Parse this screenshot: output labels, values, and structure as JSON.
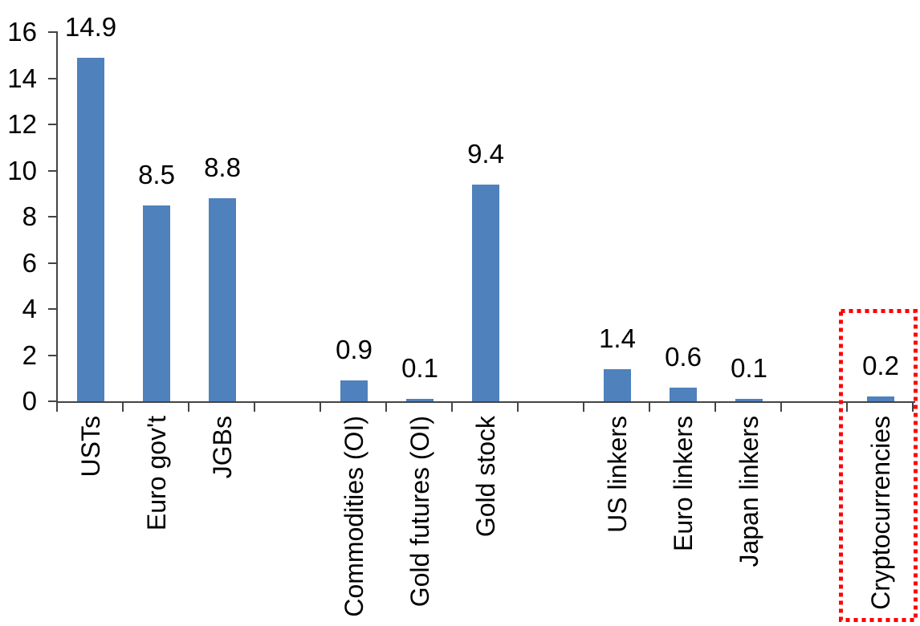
{
  "chart_data": {
    "type": "bar",
    "title": "",
    "xlabel": "",
    "ylabel": "",
    "categories": [
      "USTs",
      "Euro gov't",
      "JGBs",
      "Commodities (OI)",
      "Gold futures (OI)",
      "Gold stock",
      "US linkers",
      "Euro linkers",
      "Japan linkers",
      "Cryptocurrencies"
    ],
    "values": [
      14.9,
      8.5,
      8.8,
      0.9,
      0.1,
      9.4,
      1.4,
      0.6,
      0.1,
      0.2
    ],
    "value_labels": [
      "14.9",
      "8.5",
      "8.8",
      "0.9",
      "0.1",
      "9.4",
      "1.4",
      "0.6",
      "0.1",
      "0.2"
    ],
    "slot_index": [
      0,
      1,
      2,
      4,
      5,
      6,
      8,
      9,
      10,
      12
    ],
    "total_slots": 13,
    "ylim": [
      0,
      16
    ],
    "yticks": [
      "16",
      "14",
      "12",
      "10",
      "8",
      "6",
      "4",
      "2",
      "0"
    ],
    "ytick_values": [
      16,
      14,
      12,
      10,
      8,
      6,
      4,
      2,
      0
    ],
    "grid": false,
    "legend": false,
    "bar_color": "#4F81BD",
    "axis_color": "#444444",
    "text_color": "#000000",
    "highlight": {
      "category": "Cryptocurrencies",
      "style": "red-dotted-box",
      "color": "#FF0000"
    }
  }
}
